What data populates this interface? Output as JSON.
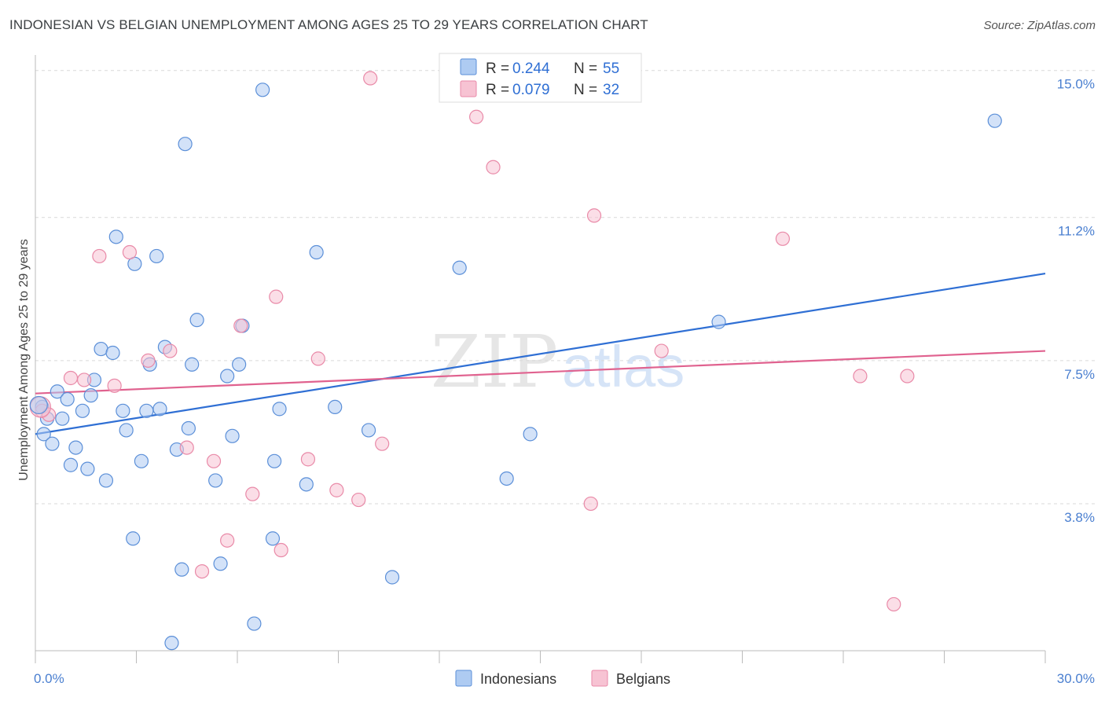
{
  "header": {
    "title": "INDONESIAN VS BELGIAN UNEMPLOYMENT AMONG AGES 25 TO 29 YEARS CORRELATION CHART",
    "source": "Source: ZipAtlas.com"
  },
  "watermark": {
    "zip": "ZIP",
    "atlas": "atlas"
  },
  "colors": {
    "indonesians_fill": "#aecbf2",
    "indonesians_stroke": "#5b8fd8",
    "indonesians_line": "#2f6fd4",
    "belgians_fill": "#f7c3d3",
    "belgians_stroke": "#e98aa8",
    "belgians_line": "#e0628f",
    "tick_label": "#4a7fd0",
    "grid": "#d9d9d9"
  },
  "legend": {
    "r_label": "R =",
    "n_label": "N =",
    "rows": [
      {
        "r": "0.244",
        "n": "55"
      },
      {
        "r": "0.079",
        "n": "32"
      }
    ]
  },
  "chart_data": {
    "type": "scatter",
    "title": "INDONESIAN VS BELGIAN UNEMPLOYMENT AMONG AGES 25 TO 29 YEARS CORRELATION CHART",
    "xlabel": "",
    "ylabel": "Unemployment Among Ages 25 to 29 years",
    "xlim": [
      0,
      30
    ],
    "ylim": [
      0,
      15.4
    ],
    "x_tick_labels": [
      "0.0%",
      "30.0%"
    ],
    "y_ticks": [
      3.8,
      7.5,
      11.2,
      15.0
    ],
    "y_tick_labels": [
      "3.8%",
      "7.5%",
      "11.2%",
      "15.0%"
    ],
    "grid": true,
    "legend_position": "top-center",
    "series": [
      {
        "name": "Indonesians",
        "points": [
          [
            0.2,
            6.3
          ],
          [
            0.25,
            5.6
          ],
          [
            0.35,
            6.0
          ],
          [
            0.5,
            5.35
          ],
          [
            0.65,
            6.7
          ],
          [
            0.8,
            6.0
          ],
          [
            0.95,
            6.5
          ],
          [
            1.05,
            4.8
          ],
          [
            1.2,
            5.25
          ],
          [
            1.4,
            6.2
          ],
          [
            1.55,
            4.7
          ],
          [
            1.65,
            6.6
          ],
          [
            1.75,
            7.0
          ],
          [
            1.95,
            7.8
          ],
          [
            2.1,
            4.4
          ],
          [
            2.3,
            7.7
          ],
          [
            2.4,
            10.7
          ],
          [
            2.6,
            6.2
          ],
          [
            2.7,
            5.7
          ],
          [
            2.9,
            2.9
          ],
          [
            2.95,
            10.0
          ],
          [
            3.15,
            4.9
          ],
          [
            3.3,
            6.2
          ],
          [
            3.4,
            7.4
          ],
          [
            3.6,
            10.2
          ],
          [
            3.7,
            6.25
          ],
          [
            3.85,
            7.85
          ],
          [
            4.05,
            0.2
          ],
          [
            4.2,
            5.2
          ],
          [
            4.35,
            2.1
          ],
          [
            4.45,
            13.1
          ],
          [
            4.55,
            5.75
          ],
          [
            4.65,
            7.4
          ],
          [
            4.8,
            8.55
          ],
          [
            5.35,
            4.4
          ],
          [
            5.5,
            2.25
          ],
          [
            5.7,
            7.1
          ],
          [
            5.85,
            5.55
          ],
          [
            6.05,
            7.4
          ],
          [
            6.15,
            8.4
          ],
          [
            6.5,
            0.7
          ],
          [
            6.75,
            14.5
          ],
          [
            7.05,
            2.9
          ],
          [
            7.1,
            4.9
          ],
          [
            7.25,
            6.25
          ],
          [
            8.05,
            4.3
          ],
          [
            8.35,
            10.3
          ],
          [
            8.9,
            6.3
          ],
          [
            9.9,
            5.7
          ],
          [
            10.6,
            1.9
          ],
          [
            12.6,
            9.9
          ],
          [
            14.0,
            4.45
          ],
          [
            14.7,
            5.6
          ],
          [
            20.3,
            8.5
          ],
          [
            28.5,
            13.7
          ]
        ],
        "trend": {
          "x": [
            0,
            30
          ],
          "y": [
            5.6,
            9.75
          ]
        }
      },
      {
        "name": "Belgians",
        "points": [
          [
            0.2,
            6.2
          ],
          [
            0.4,
            6.1
          ],
          [
            1.05,
            7.05
          ],
          [
            1.45,
            7.0
          ],
          [
            1.9,
            10.2
          ],
          [
            2.35,
            6.85
          ],
          [
            2.8,
            10.3
          ],
          [
            3.35,
            7.5
          ],
          [
            4.0,
            7.75
          ],
          [
            4.5,
            5.25
          ],
          [
            4.95,
            2.05
          ],
          [
            5.3,
            4.9
          ],
          [
            5.7,
            2.85
          ],
          [
            6.1,
            8.4
          ],
          [
            6.45,
            4.05
          ],
          [
            7.15,
            9.15
          ],
          [
            7.3,
            2.6
          ],
          [
            8.1,
            4.95
          ],
          [
            8.4,
            7.55
          ],
          [
            8.95,
            4.15
          ],
          [
            9.6,
            3.9
          ],
          [
            9.95,
            14.8
          ],
          [
            10.3,
            5.35
          ],
          [
            13.1,
            13.8
          ],
          [
            13.6,
            12.5
          ],
          [
            16.5,
            3.8
          ],
          [
            16.6,
            11.25
          ],
          [
            18.6,
            7.75
          ],
          [
            22.2,
            10.65
          ],
          [
            24.5,
            7.1
          ],
          [
            25.5,
            1.2
          ],
          [
            25.9,
            7.1
          ]
        ],
        "trend": {
          "x": [
            0,
            30
          ],
          "y": [
            6.65,
            7.75
          ]
        }
      }
    ]
  }
}
